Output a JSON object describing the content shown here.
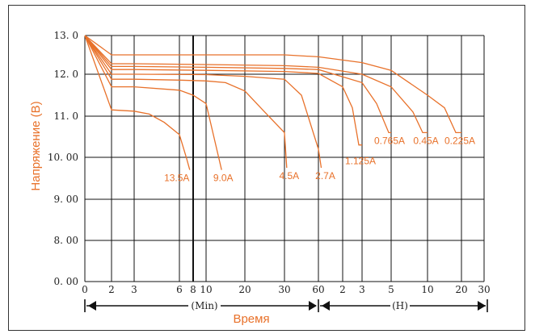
{
  "chart_data": {
    "type": "line",
    "ylabel": "Напряжение (В)",
    "xlabel": "Время",
    "ylim": [
      0,
      13
    ],
    "y_ticks": [
      {
        "value": 13,
        "label": "13. 0"
      },
      {
        "value": 12,
        "label": "12. 0"
      },
      {
        "value": 11,
        "label": "11. 0"
      },
      {
        "value": 10,
        "label": "10. 00"
      },
      {
        "value": 9,
        "label": "9. 00"
      },
      {
        "value": 8,
        "label": "8. 00"
      },
      {
        "value": 0,
        "label": "0. 00"
      }
    ],
    "x_ticks": [
      "0",
      "2",
      "3",
      "6",
      "8",
      "10",
      "20",
      "30",
      "60",
      "2",
      "3",
      "5",
      "10",
      "20",
      "30"
    ],
    "x_units": {
      "minutes": "(Min)",
      "hours": "(H)"
    },
    "grid": true,
    "series": [
      {
        "name": "13.5A",
        "points": [
          [
            0,
            13.0
          ],
          [
            2,
            11.15
          ],
          [
            3,
            11.12
          ],
          [
            4,
            11.05
          ],
          [
            5,
            10.85
          ],
          [
            6,
            10.55
          ],
          [
            7,
            10.0
          ],
          [
            7.5,
            9.7
          ]
        ]
      },
      {
        "name": "9.0A",
        "points": [
          [
            0,
            13.0
          ],
          [
            2,
            11.7
          ],
          [
            3,
            11.7
          ],
          [
            6,
            11.62
          ],
          [
            8,
            11.5
          ],
          [
            10,
            11.3
          ],
          [
            12,
            10.5
          ],
          [
            14,
            9.7
          ]
        ]
      },
      {
        "name": "4.5A",
        "points": [
          [
            0,
            13.0
          ],
          [
            2,
            11.88
          ],
          [
            3,
            11.88
          ],
          [
            6,
            11.86
          ],
          [
            10,
            11.84
          ],
          [
            15,
            11.8
          ],
          [
            20,
            11.6
          ],
          [
            25,
            11.1
          ],
          [
            30,
            10.6
          ],
          [
            32,
            9.75
          ]
        ]
      },
      {
        "name": "2.7A",
        "points": [
          [
            0,
            13.0
          ],
          [
            2,
            12.0
          ],
          [
            3,
            12.0
          ],
          [
            10,
            11.99
          ],
          [
            20,
            11.95
          ],
          [
            30,
            11.88
          ],
          [
            45,
            11.5
          ],
          [
            60,
            10.2
          ],
          [
            67,
            9.75
          ]
        ]
      },
      {
        "name": "1.125A",
        "points": [
          [
            0,
            13.0
          ],
          [
            2,
            12.12
          ],
          [
            3,
            12.12
          ],
          [
            10,
            12.1
          ],
          [
            30,
            12.07
          ],
          [
            60,
            12.02
          ],
          [
            120,
            11.7
          ],
          [
            150,
            11.2
          ],
          [
            170,
            10.3
          ],
          [
            180,
            10.3
          ]
        ]
      },
      {
        "name": "0.765A",
        "points": [
          [
            0,
            13.0
          ],
          [
            2,
            12.2
          ],
          [
            3,
            12.2
          ],
          [
            10,
            12.18
          ],
          [
            30,
            12.15
          ],
          [
            60,
            12.12
          ],
          [
            180,
            11.8
          ],
          [
            240,
            11.3
          ],
          [
            290,
            10.6
          ],
          [
            300,
            10.6
          ]
        ]
      },
      {
        "name": "0.45A",
        "points": [
          [
            0,
            13.0
          ],
          [
            2,
            12.27
          ],
          [
            3,
            12.27
          ],
          [
            10,
            12.25
          ],
          [
            30,
            12.22
          ],
          [
            60,
            12.18
          ],
          [
            180,
            12.0
          ],
          [
            300,
            11.7
          ],
          [
            480,
            11.1
          ],
          [
            560,
            10.6
          ],
          [
            600,
            10.6
          ]
        ]
      },
      {
        "name": "0.225A",
        "points": [
          [
            0,
            13.0
          ],
          [
            2,
            12.5
          ],
          [
            3,
            12.5
          ],
          [
            10,
            12.5
          ],
          [
            30,
            12.5
          ],
          [
            60,
            12.45
          ],
          [
            180,
            12.3
          ],
          [
            300,
            12.1
          ],
          [
            600,
            11.5
          ],
          [
            900,
            11.2
          ],
          [
            1100,
            10.6
          ],
          [
            1200,
            10.6
          ]
        ]
      }
    ]
  }
}
